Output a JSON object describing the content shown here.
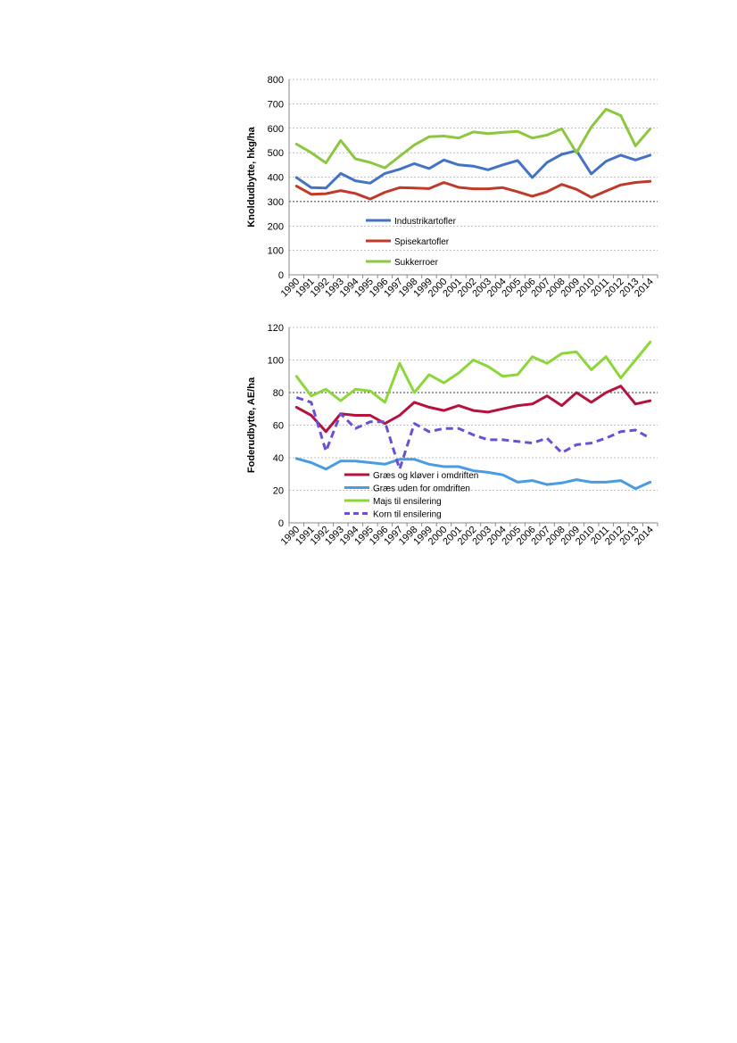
{
  "chart_data": [
    {
      "type": "line",
      "ylabel": "Knoldudbytte, hkg/ha",
      "ylim": [
        0,
        800
      ],
      "yticks": [
        0,
        100,
        200,
        300,
        400,
        500,
        600,
        700,
        800
      ],
      "grid": true,
      "legend_placement": "inside-bottom-center",
      "x": [
        "1990",
        "1991",
        "1992",
        "1993",
        "1994",
        "1995",
        "1996",
        "1997",
        "1998",
        "1999",
        "2000",
        "2001",
        "2002",
        "2003",
        "2004",
        "2005",
        "2006",
        "2007",
        "2008",
        "2009",
        "2010",
        "2011",
        "2012",
        "2013",
        "2014"
      ],
      "series": [
        {
          "name": "Industrikartofler",
          "color": "#4472C4",
          "dash": false,
          "values": [
            398,
            357,
            355,
            415,
            385,
            375,
            415,
            432,
            455,
            435,
            470,
            450,
            445,
            430,
            450,
            468,
            398,
            460,
            493,
            508,
            413,
            465,
            490,
            470,
            490
          ]
        },
        {
          "name": "Spisekartofler",
          "color": "#C0392B",
          "dash": false,
          "values": [
            363,
            330,
            332,
            345,
            333,
            310,
            338,
            357,
            355,
            353,
            378,
            358,
            352,
            352,
            357,
            340,
            322,
            340,
            370,
            350,
            317,
            343,
            368,
            378,
            383
          ]
        },
        {
          "name": "Sukkerroer",
          "color": "#8DC63F",
          "dash": false,
          "values": [
            535,
            500,
            458,
            550,
            475,
            460,
            438,
            485,
            532,
            565,
            568,
            560,
            585,
            578,
            583,
            587,
            560,
            572,
            598,
            500,
            605,
            678,
            652,
            528,
            598
          ]
        }
      ]
    },
    {
      "type": "line",
      "ylabel": "Foderudbytte, AE/ha",
      "ylim": [
        0,
        120
      ],
      "yticks": [
        0,
        20,
        40,
        60,
        80,
        100,
        120
      ],
      "grid": true,
      "legend_placement": "inside-bottom-center",
      "x": [
        "1990",
        "1991",
        "1992",
        "1993",
        "1994",
        "1995",
        "1996",
        "1997",
        "1998",
        "1999",
        "2000",
        "2001",
        "2002",
        "2003",
        "2004",
        "2005",
        "2006",
        "2007",
        "2008",
        "2009",
        "2010",
        "2011",
        "2012",
        "2013",
        "2014"
      ],
      "series": [
        {
          "name": "Græs og kløver i omdriften",
          "color": "#B5123E",
          "dash": false,
          "values": [
            71,
            66,
            56,
            67,
            66,
            66,
            61,
            66,
            74,
            71,
            69,
            72,
            69,
            68,
            70,
            72,
            73,
            78,
            72,
            80,
            74,
            80,
            84,
            73,
            75
          ]
        },
        {
          "name": "Græs uden for omdriften",
          "color": "#4A9BE0",
          "dash": false,
          "values": [
            39.5,
            37,
            33,
            38,
            38,
            37,
            36,
            39,
            39,
            36,
            34.5,
            34.5,
            32,
            31,
            29.5,
            25,
            26,
            23.5,
            24.5,
            26.5,
            25,
            25,
            26,
            21,
            25
          ]
        },
        {
          "name": "Majs til ensilering",
          "color": "#8CD63A",
          "dash": false,
          "values": [
            90,
            78,
            82,
            75,
            82,
            81,
            74,
            98,
            80,
            91,
            86,
            92,
            100,
            96,
            90,
            91,
            102,
            98,
            104,
            105,
            94,
            102,
            89,
            100,
            111
          ]
        },
        {
          "name": "Korn til ensilering",
          "color": "#6B4FD8",
          "dash": true,
          "values": [
            77,
            74,
            44,
            67,
            58,
            62,
            62,
            33,
            61,
            56,
            58,
            58,
            54,
            51,
            51,
            50,
            49,
            52,
            43,
            48,
            49,
            52,
            56,
            57,
            52
          ]
        }
      ]
    }
  ]
}
